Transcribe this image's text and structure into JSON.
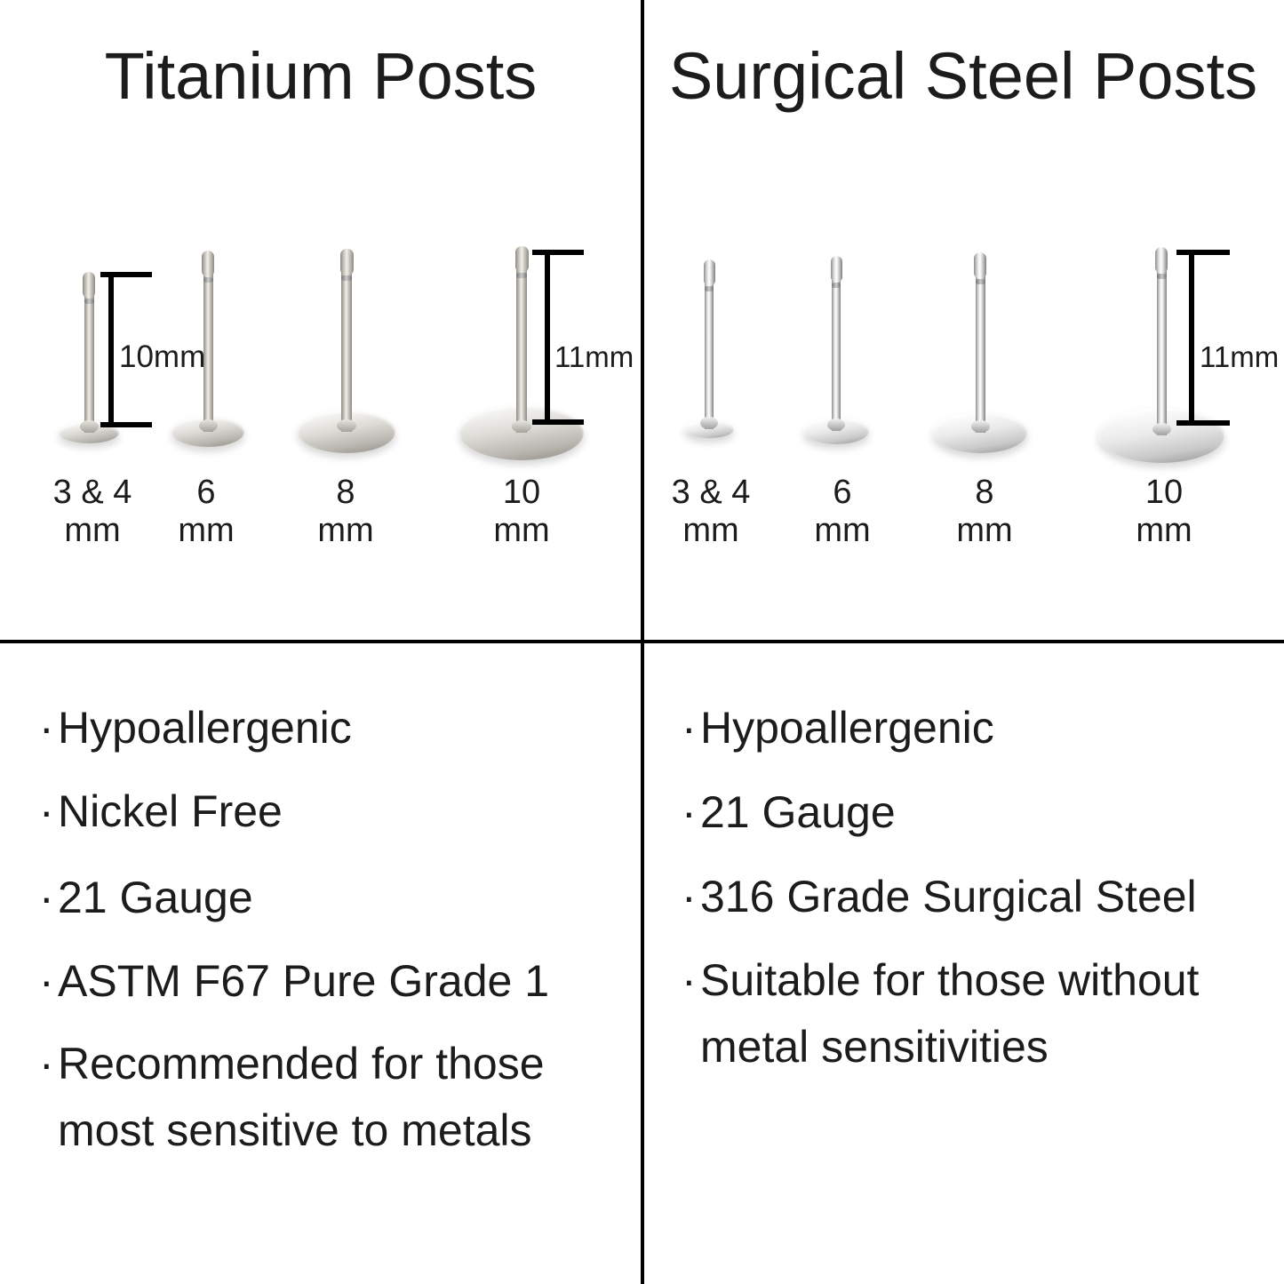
{
  "colors": {
    "text": "#1c1c1c",
    "line": "#000000",
    "background": "#ffffff"
  },
  "bullet_char": "·",
  "left_panel": {
    "title": "Titanium Posts",
    "post_height_small": "10mm",
    "post_height_large": "11mm",
    "sizes": [
      {
        "num": "3 & 4",
        "unit": "mm"
      },
      {
        "num": "6",
        "unit": "mm"
      },
      {
        "num": "8",
        "unit": "mm"
      },
      {
        "num": "10",
        "unit": "mm"
      }
    ],
    "bullets": [
      "Hypoallergenic",
      "Nickel Free",
      "21 Gauge",
      "ASTM F67 Pure Grade 1",
      "Recommended for those most sensitive to metals"
    ]
  },
  "right_panel": {
    "title": "Surgical Steel Posts",
    "post_height_large": "11mm",
    "sizes": [
      {
        "num": "3 & 4",
        "unit": "mm"
      },
      {
        "num": "6",
        "unit": "mm"
      },
      {
        "num": "8",
        "unit": "mm"
      },
      {
        "num": "10",
        "unit": "mm"
      }
    ],
    "bullets": [
      "Hypoallergenic",
      "21 Gauge",
      "316 Grade Surgical Steel",
      "Suitable for those without metal sensitivities"
    ]
  }
}
